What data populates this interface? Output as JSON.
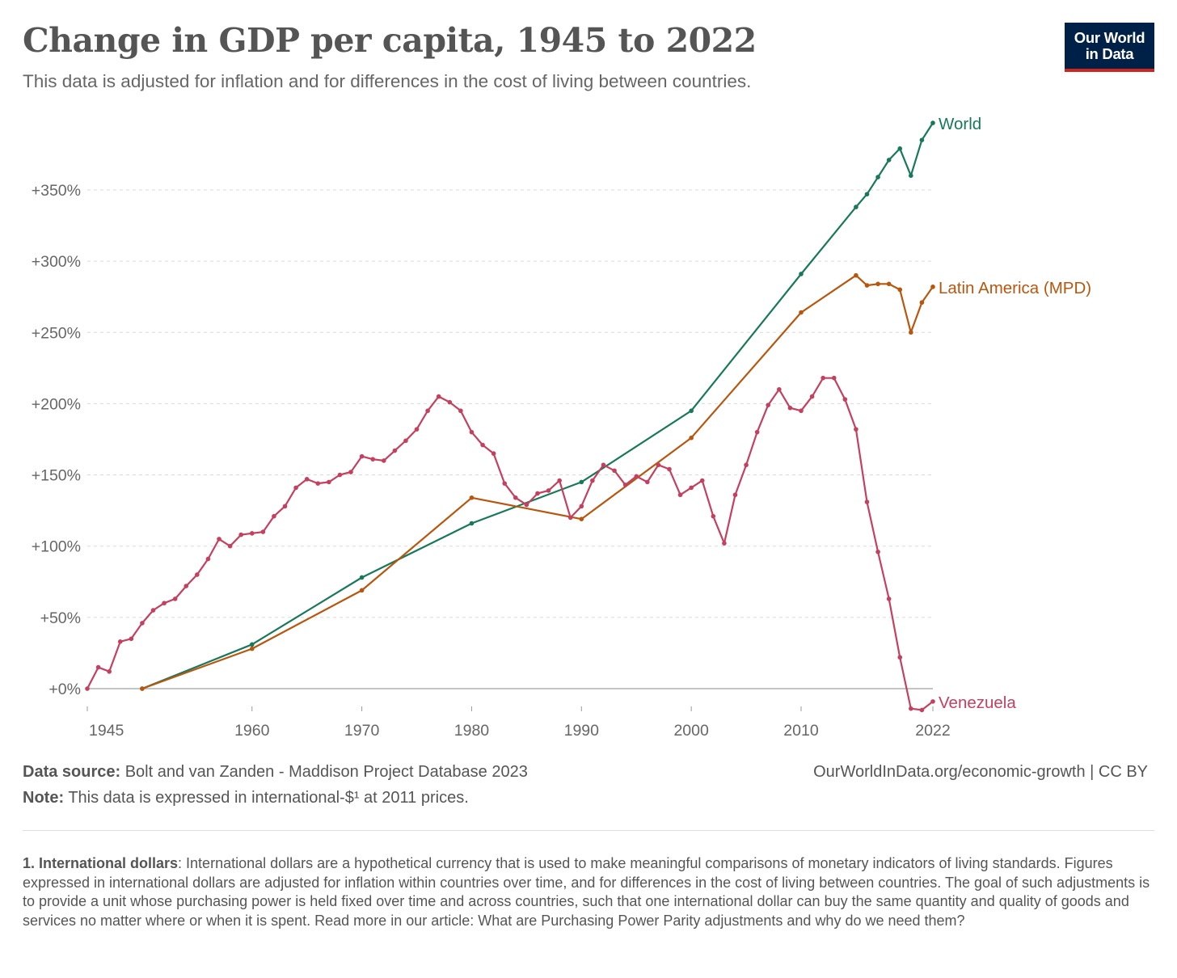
{
  "header": {
    "title": "Change in GDP per capita, 1945 to 2022",
    "subtitle": "This data is adjusted for inflation and for differences in the cost of living between countries.",
    "logo_line1": "Our World",
    "logo_line2": "in Data"
  },
  "footer": {
    "source_label": "Data source:",
    "source_text": "Bolt and van Zanden - Maddison Project Database 2023",
    "note_label": "Note:",
    "note_text": "This data is expressed in international-$¹ at 2011 prices.",
    "license": "OurWorldInData.org/economic-growth | CC BY",
    "footnote_label": "1. International dollars",
    "footnote_text": ": International dollars are a hypothetical currency that is used to make meaningful comparisons of monetary indicators of living standards. Figures expressed in international dollars are adjusted for inflation within countries over time, and for differences in the cost of living between countries. The goal of such adjustments is to provide a unit whose purchasing power is held fixed over time and across countries, such that one international dollar can buy the same quantity and quality of goods and services no matter where or when it is spent. Read more in our article: What are Purchasing Power Parity adjustments and why do we need them?"
  },
  "chart_data": {
    "type": "line",
    "title": "Change in GDP per capita, 1945 to 2022",
    "xlim": [
      1945,
      2022
    ],
    "ylim": [
      -10,
      400
    ],
    "grid": "horizontal dashed",
    "legend": "inline labels at line ends",
    "x_ticks": [
      1945,
      1960,
      1970,
      1980,
      1990,
      2000,
      2010,
      2022
    ],
    "y_ticks": [
      0,
      50,
      100,
      150,
      200,
      250,
      300,
      350
    ],
    "y_tick_labels": [
      "+0%",
      "+50%",
      "+100%",
      "+150%",
      "+200%",
      "+250%",
      "+300%",
      "+350%"
    ],
    "series": [
      {
        "name": "World",
        "color": "#18795a",
        "x": [
          1950,
          1960,
          1970,
          1980,
          1990,
          2000,
          2010,
          2015,
          2016,
          2017,
          2018,
          2019,
          2020,
          2021,
          2022
        ],
        "y": [
          0,
          31,
          78,
          116,
          145,
          195,
          291,
          338,
          347,
          359,
          371,
          379,
          360,
          385,
          397
        ]
      },
      {
        "name": "Latin America (MPD)",
        "color": "#b8560e",
        "x": [
          1950,
          1960,
          1970,
          1980,
          1990,
          2000,
          2010,
          2015,
          2016,
          2017,
          2018,
          2019,
          2020,
          2021,
          2022
        ],
        "y": [
          0,
          28,
          69,
          134,
          119,
          176,
          264,
          290,
          283,
          284,
          284,
          280,
          250,
          271,
          282
        ]
      },
      {
        "name": "Venezuela",
        "color": "#c4405e",
        "x": [
          1945,
          1946,
          1947,
          1948,
          1949,
          1950,
          1951,
          1952,
          1953,
          1954,
          1955,
          1956,
          1957,
          1958,
          1959,
          1960,
          1961,
          1962,
          1963,
          1964,
          1965,
          1966,
          1967,
          1968,
          1969,
          1970,
          1971,
          1972,
          1973,
          1974,
          1975,
          1976,
          1977,
          1978,
          1979,
          1980,
          1981,
          1982,
          1983,
          1984,
          1985,
          1986,
          1987,
          1988,
          1989,
          1990,
          1991,
          1992,
          1993,
          1994,
          1995,
          1996,
          1997,
          1998,
          1999,
          2000,
          2001,
          2002,
          2003,
          2004,
          2005,
          2006,
          2007,
          2008,
          2009,
          2010,
          2011,
          2012,
          2013,
          2014,
          2015,
          2016,
          2017,
          2018,
          2019,
          2020,
          2021,
          2022
        ],
        "y": [
          0,
          15,
          12,
          33,
          35,
          46,
          55,
          60,
          63,
          72,
          80,
          91,
          105,
          100,
          108,
          109,
          110,
          121,
          128,
          141,
          147,
          144,
          145,
          150,
          152,
          163,
          161,
          160,
          167,
          174,
          182,
          195,
          205,
          201,
          195,
          180,
          171,
          165,
          144,
          134,
          129,
          137,
          139,
          146,
          120,
          128,
          146,
          157,
          153,
          143,
          149,
          145,
          157,
          154,
          136,
          141,
          146,
          121,
          102,
          136,
          157,
          180,
          199,
          210,
          197,
          195,
          205,
          218,
          218,
          203,
          182,
          131,
          96,
          63,
          22,
          -14,
          -15,
          -9
        ]
      }
    ]
  }
}
